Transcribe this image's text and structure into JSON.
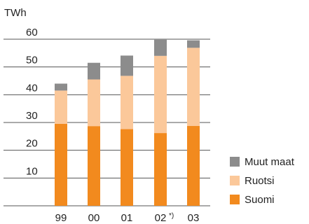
{
  "chart_data": {
    "type": "bar",
    "stacked": true,
    "title": "",
    "xlabel": "",
    "ylabel": "TWh",
    "ylim": [
      0,
      60
    ],
    "yticks": [
      10,
      20,
      30,
      40,
      50,
      60
    ],
    "categories": [
      "99",
      "00",
      "01",
      "02",
      "03"
    ],
    "category_notes": [
      "",
      "",
      "",
      "*)",
      ""
    ],
    "series": [
      {
        "name": "Suomi",
        "color": "#f28a1e",
        "values": [
          29.5,
          28.7,
          27.6,
          26.2,
          28.8
        ]
      },
      {
        "name": "Ruotsi",
        "color": "#fbc89a",
        "values": [
          12.0,
          16.8,
          19.2,
          27.8,
          28.1
        ]
      },
      {
        "name": "Muut maat",
        "color": "#8c8c8c",
        "values": [
          2.5,
          6.0,
          7.3,
          5.8,
          2.7
        ]
      }
    ],
    "legend_order": [
      "Muut maat",
      "Ruotsi",
      "Suomi"
    ],
    "legend_position": "bottom-right",
    "grid": true,
    "grid_color": "#555555"
  }
}
